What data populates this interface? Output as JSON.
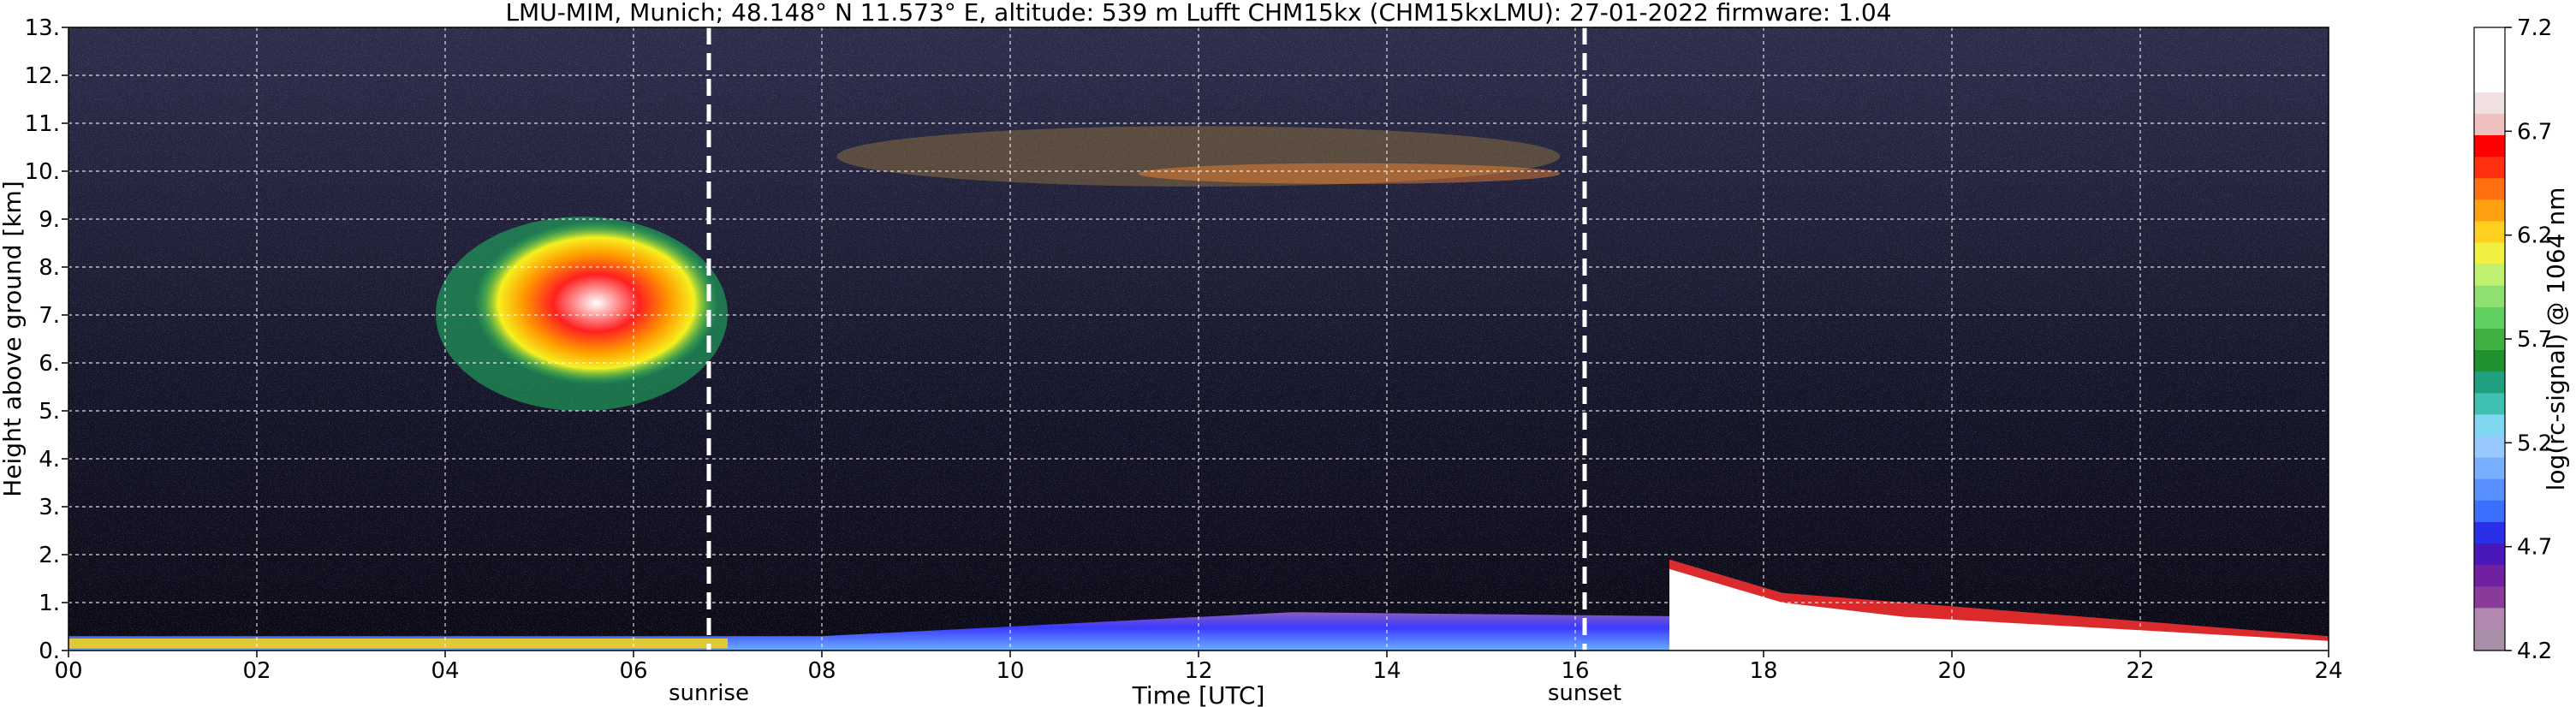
{
  "chart_data": {
    "type": "heatmap",
    "title": "LMU-MIM, Munich; 48.148° N 11.573° E, altitude: 539 m    Lufft CHM15kx (CHM15kxLMU): 27-01-2022    firmware: 1.04",
    "xlabel": "Time [UTC]",
    "ylabel": "Height above ground [km]",
    "xlim": [
      0,
      24
    ],
    "ylim": [
      0,
      13
    ],
    "x_ticks": [
      "00",
      "02",
      "04",
      "06",
      "08",
      "10",
      "12",
      "14",
      "16",
      "18",
      "20",
      "22",
      "24"
    ],
    "x_tick_values": [
      0,
      2,
      4,
      6,
      8,
      10,
      12,
      14,
      16,
      18,
      20,
      22,
      24
    ],
    "y_ticks": [
      "0.",
      "1.",
      "2.",
      "3.",
      "4.",
      "5.",
      "6.",
      "7.",
      "8.",
      "9.",
      "10.",
      "11.",
      "12.",
      "13."
    ],
    "y_tick_values": [
      0,
      1,
      2,
      3,
      4,
      5,
      6,
      7,
      8,
      9,
      10,
      11,
      12,
      13
    ],
    "grid": true,
    "colorbar": {
      "label": "log(rc-signal) @ 1064 nm",
      "min": 4.2,
      "max": 7.2,
      "tick_labels": [
        "4.2",
        "4.7",
        "5.2",
        "5.7",
        "6.2",
        "6.7",
        "7.2"
      ],
      "tick_values": [
        4.2,
        4.7,
        5.2,
        5.7,
        6.2,
        6.7,
        7.2
      ]
    },
    "annotations": [
      {
        "label": "sunrise",
        "x": 6.8
      },
      {
        "label": "sunset",
        "x": 16.1
      }
    ],
    "features": [
      {
        "kind": "cloud",
        "x_range": [
          3.9,
          7.0
        ],
        "height_range_km": [
          5.0,
          9.5
        ],
        "peak_signal": 7.0
      },
      {
        "kind": "thin cloud",
        "x_range": [
          8.0,
          16.0
        ],
        "height_range_km": [
          9.5,
          11.3
        ],
        "peak_signal": 6.0
      },
      {
        "kind": "boundary layer",
        "x_range": [
          0,
          17.8
        ],
        "height_range_km": [
          0,
          0.8
        ],
        "peak_signal": 5.0
      },
      {
        "kind": "low cloud",
        "x_range": [
          17.0,
          24.0
        ],
        "height_range_km": [
          0,
          2.5
        ],
        "peak_signal": 7.2
      }
    ]
  }
}
